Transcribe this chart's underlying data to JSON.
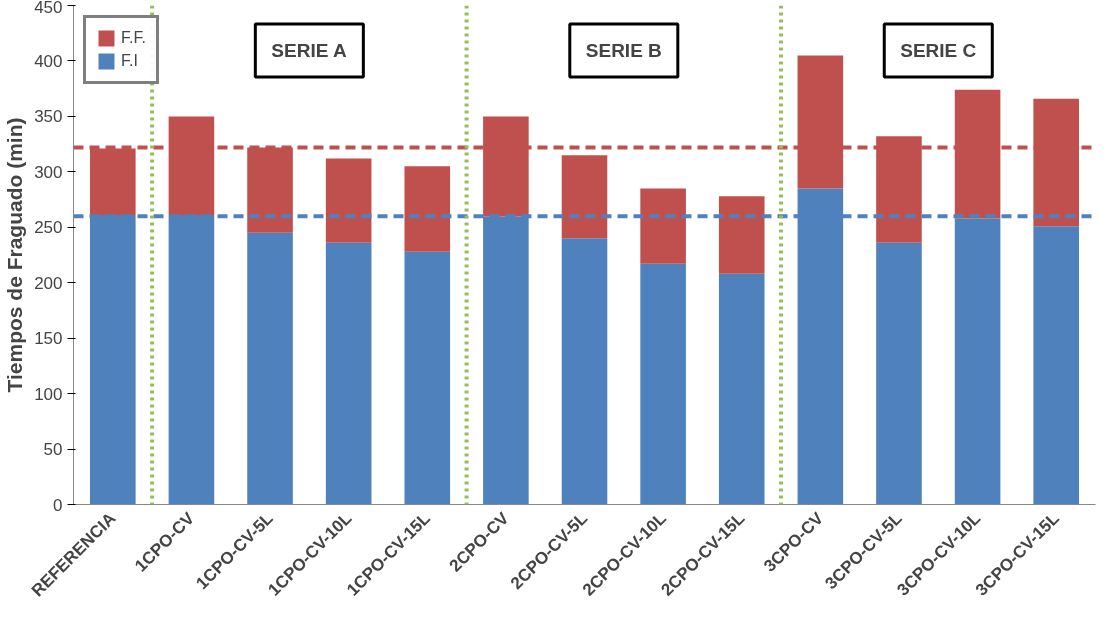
{
  "chart_data": {
    "type": "bar",
    "stacked": true,
    "ylabel": "Tiempos de Fraguado (min)",
    "categories": [
      "REFERENCIA",
      "1CPO-CV",
      "1CPO-CV-5L",
      "1CPO-CV-10L",
      "1CPO-CV-15L",
      "2CPO-CV",
      "2CPO-CV-5L",
      "2CPO-CV-10L",
      "2CPO-CV-15L",
      "3CPO-CV",
      "3CPO-CV-5L",
      "3CPO-CV-10L",
      "3CPO-CV-15L"
    ],
    "series": [
      {
        "name": "F.I",
        "color": "#4f81bd",
        "values": [
          261,
          261,
          245,
          236,
          228,
          260,
          240,
          217,
          208,
          285,
          236,
          258,
          251
        ]
      },
      {
        "name": "F.F.",
        "color": "#c0504d",
        "values": [
          60,
          89,
          77,
          76,
          77,
          90,
          75,
          68,
          70,
          120,
          96,
          116,
          115
        ]
      }
    ],
    "ylim": [
      0,
      450
    ],
    "yticks": [
      0,
      50,
      100,
      150,
      200,
      250,
      300,
      350,
      400,
      450
    ],
    "ref_lines": [
      {
        "axis": "y",
        "value": 322,
        "color": "#c0504d",
        "line_style": "dashed",
        "label": null
      },
      {
        "axis": "y",
        "value": 260,
        "color": "#4f81bd",
        "line_style": "dashed",
        "label": null
      }
    ],
    "annotations": [
      "SERIE A",
      "SERIE B",
      "SERIE C"
    ],
    "legend": "top left",
    "grid": false
  }
}
